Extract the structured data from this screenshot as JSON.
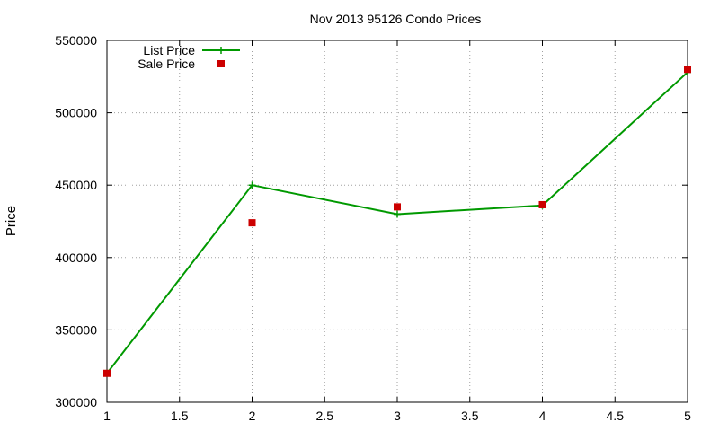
{
  "chart_data": {
    "type": "line",
    "title": "Nov 2013 95126 Condo Prices",
    "xlabel": "",
    "ylabel": "Price",
    "xlim": [
      1,
      5
    ],
    "ylim": [
      300000,
      550000
    ],
    "x_ticks": [
      "1",
      "1.5",
      "2",
      "2.5",
      "3",
      "3.5",
      "4",
      "4.5",
      "5"
    ],
    "y_ticks": [
      "300000",
      "350000",
      "400000",
      "450000",
      "500000",
      "550000"
    ],
    "grid": true,
    "legend_position": "top-left",
    "series": [
      {
        "name": "List Price",
        "style": "line",
        "color": "#009900",
        "x": [
          1,
          2,
          3,
          4,
          5
        ],
        "values": [
          320000,
          450000,
          430000,
          436000,
          528000
        ]
      },
      {
        "name": "Sale Price",
        "style": "points",
        "color": "#cc0000",
        "x": [
          1,
          2,
          3,
          4,
          5
        ],
        "values": [
          320000,
          424000,
          435000,
          436500,
          530000
        ]
      }
    ]
  }
}
